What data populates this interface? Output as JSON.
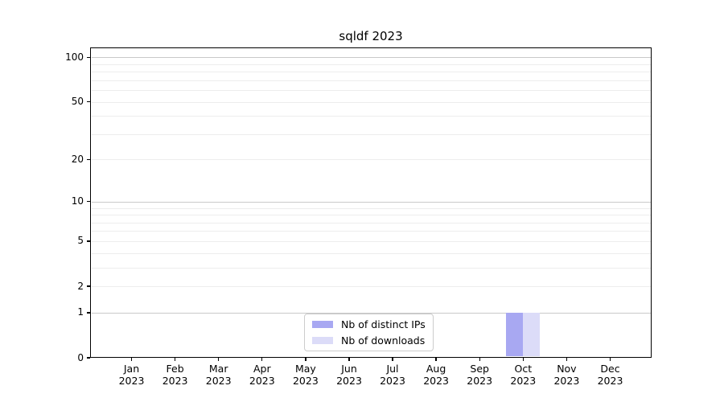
{
  "chart_data": {
    "type": "bar",
    "title": "sqldf 2023",
    "xlabel": "",
    "ylabel": "",
    "year_label": "2023",
    "categories": [
      "Jan",
      "Feb",
      "Mar",
      "Apr",
      "May",
      "Jun",
      "Jul",
      "Aug",
      "Sep",
      "Oct",
      "Nov",
      "Dec"
    ],
    "series": [
      {
        "name": "Nb of distinct IPs",
        "color": "#a8a8f2",
        "values": [
          0,
          0,
          0,
          0,
          0,
          0,
          0,
          0,
          0,
          1,
          0,
          0
        ]
      },
      {
        "name": "Nb of downloads",
        "color": "#dcdcf8",
        "values": [
          0,
          0,
          0,
          0,
          0,
          0,
          0,
          0,
          0,
          1,
          0,
          0
        ]
      }
    ],
    "yscale": "log1p",
    "ylim": [
      0,
      115
    ],
    "y_tick_labels": [
      0,
      1,
      2,
      5,
      10,
      20,
      50,
      100
    ],
    "y_gridlines_major": [
      1,
      10,
      100
    ],
    "y_gridlines_minor": [
      2,
      3,
      4,
      5,
      6,
      7,
      8,
      9,
      20,
      30,
      40,
      50,
      60,
      70,
      80,
      90
    ],
    "grid": true,
    "legend": {
      "position": "lower center",
      "entries": [
        "Nb of distinct IPs",
        "Nb of downloads"
      ]
    }
  },
  "colors": {
    "grid_major": "#c9c9c9",
    "grid_minor": "#ededed",
    "spine": "#000000",
    "background": "#ffffff",
    "text": "#000000",
    "legend_border": "#cccccc"
  }
}
